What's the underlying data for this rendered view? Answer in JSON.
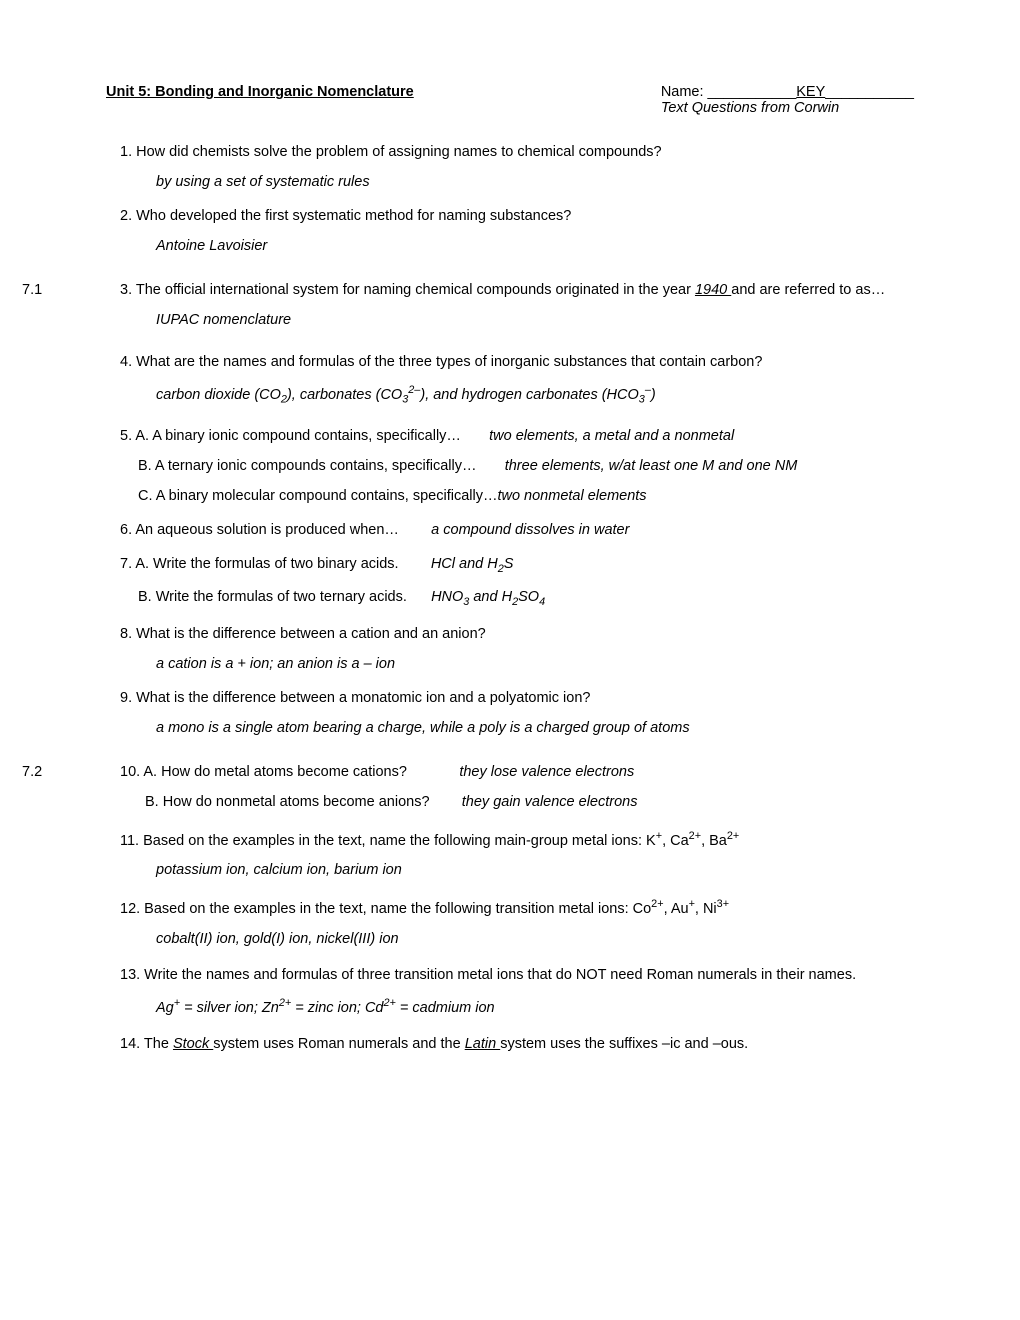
{
  "header": {
    "title": "Unit 5: Bonding and Inorganic Nomenclature",
    "name_label": "Name: ___________",
    "name_value": "KEY",
    "name_trail": "___________",
    "subtitle": "Text Questions from Corwin"
  },
  "sections": {
    "s1": {
      "label": "7.1"
    },
    "s2": {
      "label": "7.2"
    }
  },
  "q1": {
    "text": "1. How did chemists solve the problem of assigning names to chemical compounds?",
    "answer": "by using a set of systematic rules"
  },
  "q2": {
    "text": "2. Who developed the first systematic method for naming substances?",
    "answer": "Antoine Lavoisier"
  },
  "q3": {
    "pre": "3. The official international system for naming chemical compounds originated in the year ",
    "fill": " 1940 ",
    "post": " and are referred to as…",
    "answer": "IUPAC nomenclature"
  },
  "q4": {
    "text": "4. What are the names and formulas of the three types of inorganic substances that contain carbon?",
    "answer_html": "carbon dioxide (CO<sub>2</sub>), carbonates (CO<sub>3</sub><sup>2–</sup>), and hydrogen carbonates (HCO<sub>3</sub><sup>–</sup>)"
  },
  "q5": {
    "a_q": "5. A. A binary ionic compound contains, specifically…",
    "a_a": "two elements, a metal and a nonmetal",
    "b_q": "B. A ternary ionic compounds contains, specifically…",
    "b_a": "three elements, w/at least one M and one NM",
    "c_q": "C. A binary molecular compound contains, specifically…",
    "c_a": "two nonmetal elements"
  },
  "q6": {
    "q": "6. An aqueous solution is produced when…",
    "a": "a compound dissolves in water"
  },
  "q7": {
    "a_q": "7. A. Write the formulas of two binary acids.",
    "a_a_html": "HCl and H<sub>2</sub>S",
    "b_q": "B. Write the formulas of two ternary acids.",
    "b_a_html": "HNO<sub>3</sub> and H<sub>2</sub>SO<sub>4</sub>"
  },
  "q8": {
    "text": "8. What is the difference between a cation and an anion?",
    "answer": "a cation is a + ion; an anion is a – ion"
  },
  "q9": {
    "text": "9. What is the difference between a monatomic ion and a polyatomic ion?",
    "answer": "a mono is a single atom bearing a charge, while a poly is a charged group of atoms"
  },
  "q10": {
    "a_q": "10. A. How do metal atoms become cations?",
    "a_a": "they lose valence electrons",
    "b_q": "B. How do nonmetal atoms become anions?",
    "b_a": "they gain valence electrons"
  },
  "q11": {
    "text_html": "11. Based on the examples in the text, name the following main-group metal ions: K<sup>+</sup>, Ca<sup>2+</sup>, Ba<sup>2+</sup>",
    "answer": "potassium ion, calcium ion, barium ion"
  },
  "q12": {
    "text_html": "12. Based on the examples in the text, name the following transition metal ions: Co<sup>2+</sup>, Au<sup>+</sup>, Ni<sup>3+</sup>",
    "answer": "cobalt(II) ion, gold(I) ion, nickel(III) ion"
  },
  "q13": {
    "text": "13. Write the names and formulas of three transition metal ions that do NOT need Roman numerals in their names.",
    "answer_html": "Ag<sup>+</sup> = silver ion; Zn<sup>2+</sup> = zinc ion; Cd<sup>2+</sup> = cadmium ion"
  },
  "q14": {
    "pre": "14. The ",
    "fill1": " Stock ",
    "mid": " system uses Roman numerals and the ",
    "fill2": " Latin ",
    "post": " system uses the suffixes –ic and –ous."
  }
}
